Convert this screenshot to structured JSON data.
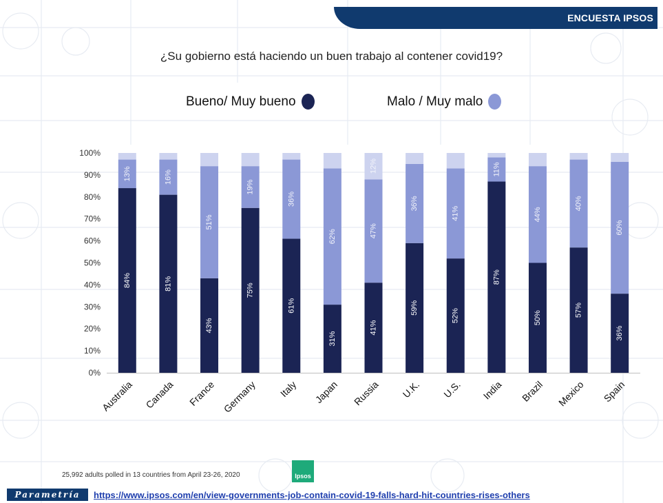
{
  "header": {
    "title": "ENCUESTA IPSOS"
  },
  "question": "¿Su gobierno está haciendo un buen trabajo al contener covid19?",
  "legend": [
    {
      "label": "Bueno/ Muy bueno",
      "color": "#1b2454"
    },
    {
      "label": "Malo / Muy malo",
      "color": "#8b98d6"
    }
  ],
  "footnote": "25,992 adults polled in 13 countries from April 23-26, 2020",
  "logo_text": "Ipsos",
  "brand": "Parametría",
  "source_url": "https://www.ipsos.com/en/view-governments-job-contain-covid-19-falls-hard-hit-countries-rises-others",
  "chart_data": {
    "type": "bar",
    "stacked": true,
    "categories": [
      "Australia",
      "Canada",
      "France",
      "Germany",
      "Italy",
      "Japan",
      "Russia",
      "U.K.",
      "U.S.",
      "India",
      "Brazil",
      "Mexico",
      "Spain"
    ],
    "series": [
      {
        "name": "Bueno/ Muy bueno",
        "color": "#1b2454",
        "values": [
          84,
          81,
          43,
          75,
          61,
          31,
          41,
          59,
          52,
          87,
          50,
          57,
          36
        ],
        "labels": [
          "84%",
          "81%",
          "43%",
          "75%",
          "61%",
          "31%",
          "41%",
          "59%",
          "52%",
          "87%",
          "50%",
          "57%",
          "36%"
        ]
      },
      {
        "name": "Malo / Muy malo",
        "color": "#8b98d6",
        "values": [
          13,
          16,
          51,
          19,
          36,
          62,
          47,
          36,
          41,
          11,
          44,
          40,
          60
        ],
        "labels": [
          "13%",
          "16%",
          "51%",
          "19%",
          "36%",
          "62%",
          "47%",
          "36%",
          "41%",
          "11%",
          "44%",
          "40%",
          "60%"
        ]
      },
      {
        "color": "#cdd3ef",
        "values": [
          3,
          3,
          6,
          6,
          3,
          7,
          12,
          5,
          7,
          2,
          6,
          3,
          4
        ],
        "labels": [
          "",
          "",
          "",
          "",
          "",
          "",
          "12%",
          "",
          "",
          "",
          "",
          "",
          ""
        ]
      }
    ],
    "yticks": [
      "0%",
      "10%",
      "20%",
      "30%",
      "40%",
      "50%",
      "60%",
      "70%",
      "80%",
      "90%",
      "100%"
    ],
    "ylim": [
      0,
      100
    ],
    "grid": false,
    "legend_position": "top"
  }
}
